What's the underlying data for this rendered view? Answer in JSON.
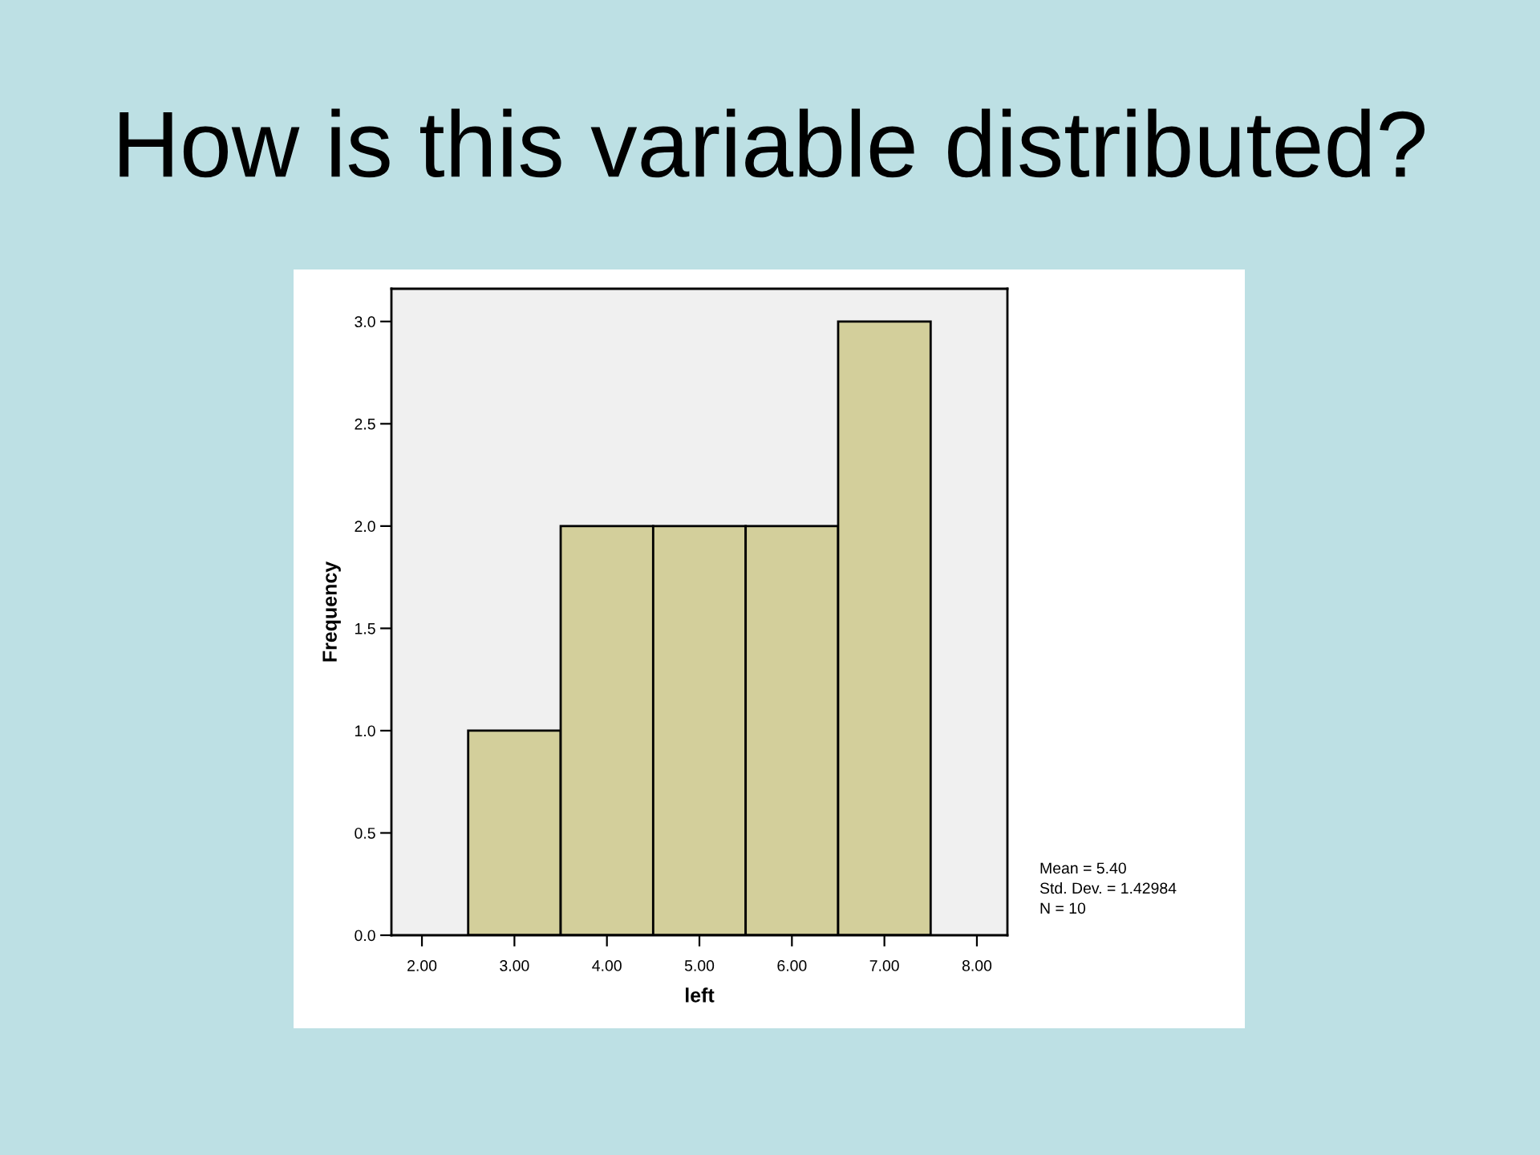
{
  "chart_data": {
    "type": "histogram",
    "title": "How is this variable distributed?",
    "xlabel": "left",
    "ylabel": "Frequency",
    "bins": [
      2.5,
      3.5,
      4.5,
      5.5,
      6.5,
      7.5
    ],
    "values": [
      1,
      2,
      2,
      2,
      3
    ],
    "color": "#d3cf9b",
    "xlim": [
      1.67,
      8.33
    ],
    "ylim": [
      0,
      3.16
    ],
    "xticks": [
      {
        "value": 2,
        "label": "2.00"
      },
      {
        "value": 3,
        "label": "3.00"
      },
      {
        "value": 4,
        "label": "4.00"
      },
      {
        "value": 5,
        "label": "5.00"
      },
      {
        "value": 6,
        "label": "6.00"
      },
      {
        "value": 7,
        "label": "7.00"
      },
      {
        "value": 8,
        "label": "8.00"
      }
    ],
    "yticks": [
      {
        "value": 0,
        "label": "0.0"
      },
      0.5,
      {
        "value": 1,
        "label": "1.0"
      },
      1.5,
      {
        "value": 2,
        "label": "2.0"
      },
      2.5,
      {
        "value": 3,
        "label": "3.0"
      }
    ],
    "annotations": [
      "Mean = 5.40",
      "Std. Dev. = 1.42984",
      "N = 10"
    ]
  }
}
